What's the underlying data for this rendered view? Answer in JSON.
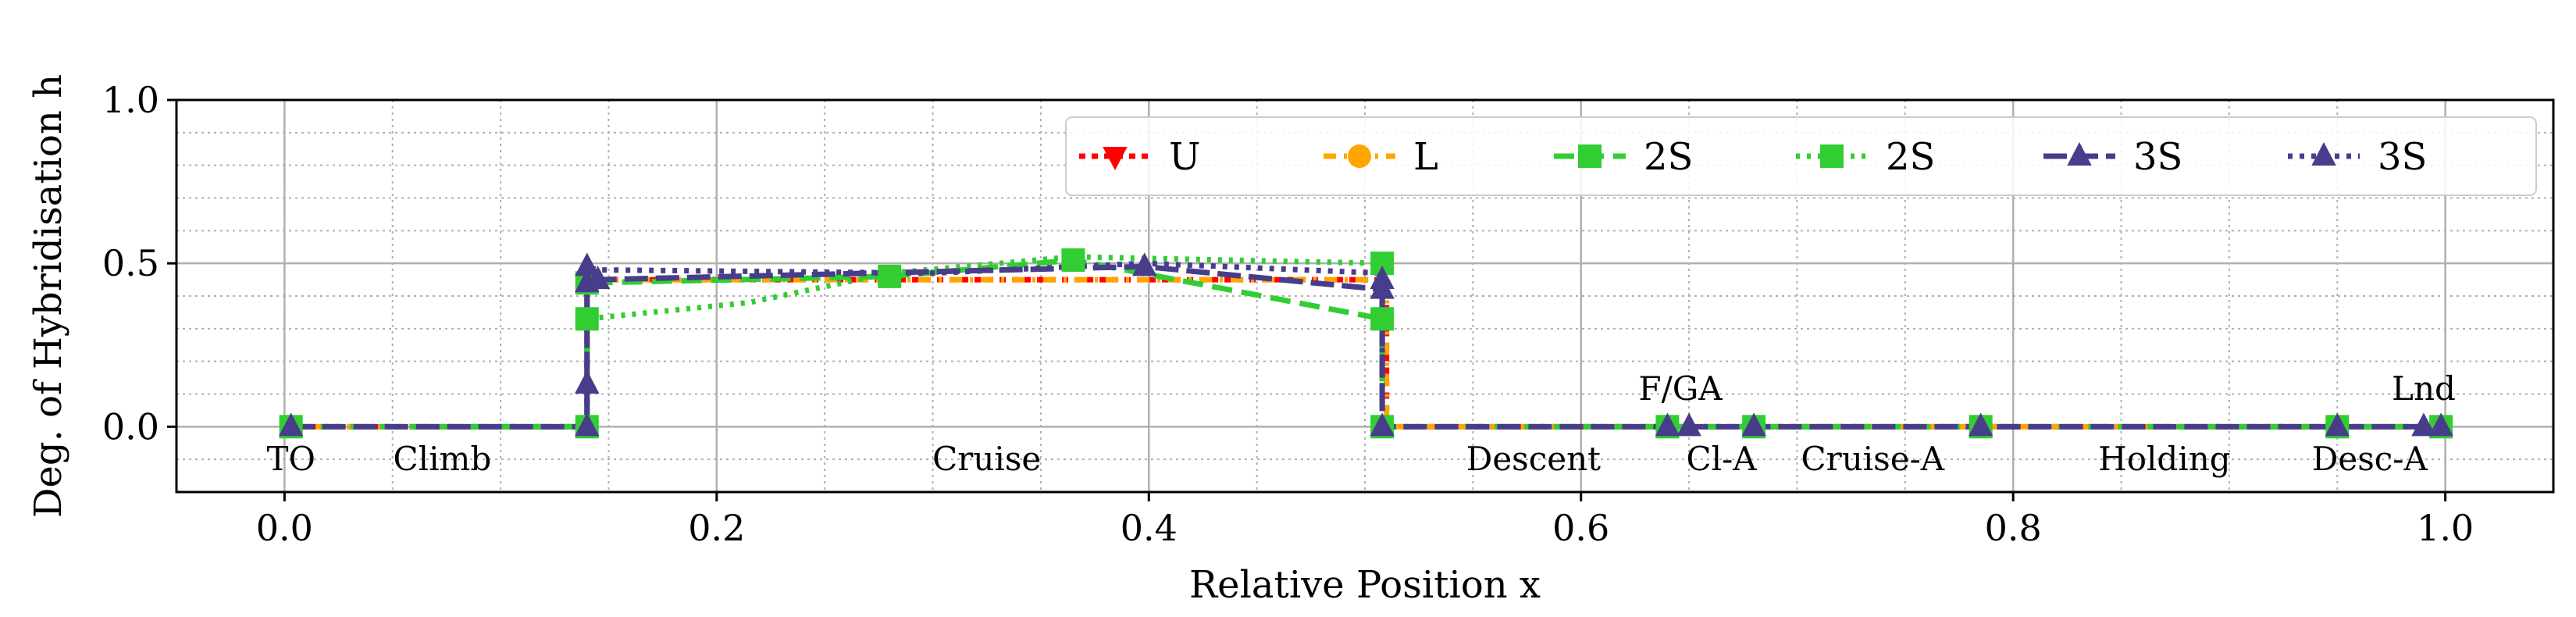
{
  "chart_data": {
    "type": "line",
    "title": "",
    "xlabel": "Relative Position x",
    "ylabel": "Deg. of Hybridisation h",
    "xlim": [
      -0.05,
      1.05
    ],
    "ylim": [
      -0.2,
      1.0
    ],
    "xticks": [
      0.0,
      0.2,
      0.4,
      0.6,
      0.8,
      1.0
    ],
    "xtick_labels": [
      "0.0",
      "0.2",
      "0.4",
      "0.6",
      "0.8",
      "1.0"
    ],
    "yticks": [
      0.0,
      0.5,
      1.0
    ],
    "ytick_labels": [
      "0.0",
      "0.5",
      "1.0"
    ],
    "grid": true,
    "legend_position": "top-right",
    "colors": {
      "red": "#ff0000",
      "orange": "#ffa500",
      "green": "#32cd32",
      "purple": "#483d8b"
    },
    "phases": [
      {
        "label": "TO",
        "x": 0.003,
        "y": -0.1
      },
      {
        "label": "Climb",
        "x": 0.073,
        "y": -0.1
      },
      {
        "label": "Cruise",
        "x": 0.325,
        "y": -0.1
      },
      {
        "label": "Descent",
        "x": 0.578,
        "y": -0.1
      },
      {
        "label": "F/GA",
        "x": 0.646,
        "y": 0.116
      },
      {
        "label": "Cl-A",
        "x": 0.665,
        "y": -0.1
      },
      {
        "label": "Cruise-A",
        "x": 0.735,
        "y": -0.1
      },
      {
        "label": "Holding",
        "x": 0.87,
        "y": -0.1
      },
      {
        "label": "Desc-A",
        "x": 0.965,
        "y": -0.1
      },
      {
        "label": "Lnd",
        "x": 0.99,
        "y": 0.116
      }
    ],
    "series": [
      {
        "name": "U",
        "color": "#ff0000",
        "dash": "8,8",
        "marker": "triangle-down",
        "show_markers": false,
        "x": [
          0.0,
          0.14,
          0.14,
          0.145,
          0.51,
          0.51,
          1.0
        ],
        "y": [
          0.0,
          0.0,
          0.45,
          0.45,
          0.45,
          0.0,
          0.0
        ]
      },
      {
        "name": "L",
        "color": "#ffa500",
        "dash": "16,10,4,10",
        "marker": "circle",
        "show_markers": false,
        "x": [
          0.0,
          0.14,
          0.14,
          0.145,
          0.51,
          0.51,
          1.0
        ],
        "y": [
          0.0,
          0.0,
          0.45,
          0.45,
          0.45,
          0.0,
          0.0
        ]
      },
      {
        "name": "2S",
        "color": "#32cd32",
        "dash": "26,12",
        "marker": "square",
        "show_markers": true,
        "x": [
          0.003,
          0.14,
          0.14,
          0.14,
          0.28,
          0.365,
          0.508,
          0.508,
          0.508,
          0.64,
          0.68,
          0.785,
          0.95,
          0.998
        ],
        "y": [
          0.0,
          0.0,
          0.33,
          0.44,
          0.46,
          0.51,
          0.33,
          0.5,
          0.0,
          0.0,
          0.0,
          0.0,
          0.0,
          0.0
        ]
      },
      {
        "name": "2S",
        "color": "#32cd32",
        "dash": "5,9",
        "marker": "square",
        "show_markers": false,
        "x": [
          0.14,
          0.14,
          0.215,
          0.28,
          0.365,
          0.508,
          0.508
        ],
        "y": [
          0.0,
          0.33,
          0.38,
          0.47,
          0.52,
          0.5,
          0.0
        ]
      },
      {
        "name": "3S",
        "color": "#483d8b",
        "dash": "30,10",
        "marker": "triangle-up",
        "show_markers": true,
        "x": [
          0.003,
          0.14,
          0.14,
          0.14,
          0.14,
          0.145,
          0.398,
          0.508,
          0.508,
          0.508,
          0.64,
          0.65,
          0.68,
          0.785,
          0.95,
          0.99,
          0.998
        ],
        "y": [
          0.0,
          0.0,
          0.13,
          0.44,
          0.49,
          0.45,
          0.49,
          0.42,
          0.45,
          0.0,
          0.0,
          0.0,
          0.0,
          0.0,
          0.0,
          0.0,
          0.0
        ]
      },
      {
        "name": "3S",
        "color": "#483d8b",
        "dash": "6,9",
        "marker": "triangle-up",
        "show_markers": false,
        "x": [
          0.14,
          0.14,
          0.145,
          0.3,
          0.398,
          0.508,
          0.508
        ],
        "y": [
          0.0,
          0.49,
          0.48,
          0.47,
          0.5,
          0.47,
          0.0
        ]
      }
    ]
  }
}
